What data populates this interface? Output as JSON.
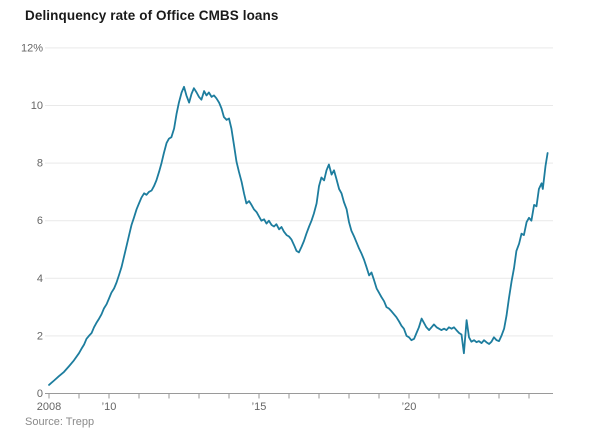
{
  "header": {
    "title": "Delinquency rate of Office CMBS loans"
  },
  "source": "Source: Trepp",
  "chart_data": {
    "type": "line",
    "title": "Delinquency rate of Office CMBS loans",
    "xlabel": "",
    "ylabel": "",
    "unit": "%",
    "grid": "horizontal",
    "legend": "none",
    "x_range": [
      2008,
      2024.9
    ],
    "y_range": [
      0,
      12
    ],
    "y_ticks": [
      {
        "value": 12,
        "label": "12%"
      },
      {
        "value": 10,
        "label": "10"
      },
      {
        "value": 8,
        "label": "8"
      },
      {
        "value": 6,
        "label": "6"
      },
      {
        "value": 4,
        "label": "4"
      },
      {
        "value": 2,
        "label": "2"
      },
      {
        "value": 0,
        "label": "0"
      }
    ],
    "x_ticks": [
      {
        "year": 2008,
        "label": "2008"
      },
      {
        "year": 2010,
        "label": "’10"
      },
      {
        "year": 2015,
        "label": "’15"
      },
      {
        "year": 2020,
        "label": "’20"
      }
    ],
    "x_minor_tick_start": 2008,
    "x_minor_tick_end": 2024,
    "line_color": "#1d7d9e",
    "series": [
      {
        "name": "Office CMBS delinquency rate",
        "points": [
          [
            2008.0,
            0.3
          ],
          [
            2008.17,
            0.45
          ],
          [
            2008.33,
            0.6
          ],
          [
            2008.5,
            0.75
          ],
          [
            2008.67,
            0.95
          ],
          [
            2008.83,
            1.15
          ],
          [
            2009.0,
            1.4
          ],
          [
            2009.08,
            1.55
          ],
          [
            2009.17,
            1.7
          ],
          [
            2009.25,
            1.9
          ],
          [
            2009.33,
            2.0
          ],
          [
            2009.42,
            2.1
          ],
          [
            2009.5,
            2.3
          ],
          [
            2009.58,
            2.45
          ],
          [
            2009.67,
            2.6
          ],
          [
            2009.75,
            2.75
          ],
          [
            2009.83,
            2.95
          ],
          [
            2009.92,
            3.1
          ],
          [
            2010.0,
            3.3
          ],
          [
            2010.08,
            3.5
          ],
          [
            2010.17,
            3.65
          ],
          [
            2010.25,
            3.85
          ],
          [
            2010.33,
            4.1
          ],
          [
            2010.42,
            4.4
          ],
          [
            2010.5,
            4.75
          ],
          [
            2010.58,
            5.1
          ],
          [
            2010.67,
            5.5
          ],
          [
            2010.75,
            5.85
          ],
          [
            2010.83,
            6.1
          ],
          [
            2010.92,
            6.4
          ],
          [
            2011.0,
            6.6
          ],
          [
            2011.08,
            6.8
          ],
          [
            2011.17,
            6.95
          ],
          [
            2011.25,
            6.9
          ],
          [
            2011.33,
            7.0
          ],
          [
            2011.42,
            7.05
          ],
          [
            2011.5,
            7.2
          ],
          [
            2011.58,
            7.4
          ],
          [
            2011.67,
            7.7
          ],
          [
            2011.75,
            8.0
          ],
          [
            2011.83,
            8.35
          ],
          [
            2011.92,
            8.7
          ],
          [
            2012.0,
            8.85
          ],
          [
            2012.08,
            8.9
          ],
          [
            2012.17,
            9.2
          ],
          [
            2012.25,
            9.7
          ],
          [
            2012.33,
            10.1
          ],
          [
            2012.42,
            10.45
          ],
          [
            2012.5,
            10.65
          ],
          [
            2012.58,
            10.35
          ],
          [
            2012.67,
            10.1
          ],
          [
            2012.75,
            10.4
          ],
          [
            2012.83,
            10.6
          ],
          [
            2012.92,
            10.45
          ],
          [
            2013.0,
            10.3
          ],
          [
            2013.08,
            10.2
          ],
          [
            2013.17,
            10.5
          ],
          [
            2013.25,
            10.35
          ],
          [
            2013.33,
            10.45
          ],
          [
            2013.42,
            10.3
          ],
          [
            2013.5,
            10.35
          ],
          [
            2013.58,
            10.25
          ],
          [
            2013.67,
            10.1
          ],
          [
            2013.75,
            9.9
          ],
          [
            2013.83,
            9.6
          ],
          [
            2013.92,
            9.5
          ],
          [
            2014.0,
            9.55
          ],
          [
            2014.08,
            9.2
          ],
          [
            2014.17,
            8.6
          ],
          [
            2014.25,
            8.05
          ],
          [
            2014.33,
            7.7
          ],
          [
            2014.42,
            7.35
          ],
          [
            2014.5,
            6.95
          ],
          [
            2014.58,
            6.6
          ],
          [
            2014.67,
            6.68
          ],
          [
            2014.75,
            6.55
          ],
          [
            2014.83,
            6.4
          ],
          [
            2014.92,
            6.3
          ],
          [
            2015.0,
            6.15
          ],
          [
            2015.08,
            6.0
          ],
          [
            2015.17,
            6.05
          ],
          [
            2015.25,
            5.9
          ],
          [
            2015.33,
            6.0
          ],
          [
            2015.42,
            5.85
          ],
          [
            2015.5,
            5.8
          ],
          [
            2015.58,
            5.88
          ],
          [
            2015.67,
            5.7
          ],
          [
            2015.75,
            5.78
          ],
          [
            2015.83,
            5.62
          ],
          [
            2015.92,
            5.5
          ],
          [
            2016.0,
            5.45
          ],
          [
            2016.08,
            5.35
          ],
          [
            2016.17,
            5.15
          ],
          [
            2016.25,
            4.95
          ],
          [
            2016.33,
            4.9
          ],
          [
            2016.42,
            5.1
          ],
          [
            2016.5,
            5.3
          ],
          [
            2016.58,
            5.55
          ],
          [
            2016.67,
            5.8
          ],
          [
            2016.75,
            6.0
          ],
          [
            2016.83,
            6.25
          ],
          [
            2016.92,
            6.6
          ],
          [
            2017.0,
            7.2
          ],
          [
            2017.08,
            7.5
          ],
          [
            2017.17,
            7.4
          ],
          [
            2017.25,
            7.75
          ],
          [
            2017.33,
            7.95
          ],
          [
            2017.42,
            7.6
          ],
          [
            2017.5,
            7.75
          ],
          [
            2017.58,
            7.45
          ],
          [
            2017.67,
            7.1
          ],
          [
            2017.75,
            6.95
          ],
          [
            2017.83,
            6.65
          ],
          [
            2017.92,
            6.4
          ],
          [
            2018.0,
            5.95
          ],
          [
            2018.08,
            5.65
          ],
          [
            2018.17,
            5.45
          ],
          [
            2018.25,
            5.25
          ],
          [
            2018.33,
            5.05
          ],
          [
            2018.42,
            4.85
          ],
          [
            2018.5,
            4.65
          ],
          [
            2018.58,
            4.4
          ],
          [
            2018.67,
            4.1
          ],
          [
            2018.75,
            4.2
          ],
          [
            2018.83,
            3.95
          ],
          [
            2018.92,
            3.65
          ],
          [
            2019.0,
            3.5
          ],
          [
            2019.08,
            3.35
          ],
          [
            2019.17,
            3.2
          ],
          [
            2019.25,
            3.0
          ],
          [
            2019.33,
            2.95
          ],
          [
            2019.42,
            2.85
          ],
          [
            2019.5,
            2.75
          ],
          [
            2019.58,
            2.65
          ],
          [
            2019.67,
            2.5
          ],
          [
            2019.75,
            2.35
          ],
          [
            2019.83,
            2.25
          ],
          [
            2019.92,
            2.0
          ],
          [
            2020.0,
            1.95
          ],
          [
            2020.08,
            1.85
          ],
          [
            2020.17,
            1.9
          ],
          [
            2020.25,
            2.1
          ],
          [
            2020.33,
            2.3
          ],
          [
            2020.42,
            2.6
          ],
          [
            2020.5,
            2.45
          ],
          [
            2020.58,
            2.3
          ],
          [
            2020.67,
            2.2
          ],
          [
            2020.75,
            2.3
          ],
          [
            2020.83,
            2.4
          ],
          [
            2020.92,
            2.3
          ],
          [
            2021.0,
            2.25
          ],
          [
            2021.08,
            2.2
          ],
          [
            2021.17,
            2.25
          ],
          [
            2021.25,
            2.2
          ],
          [
            2021.33,
            2.3
          ],
          [
            2021.42,
            2.25
          ],
          [
            2021.5,
            2.3
          ],
          [
            2021.58,
            2.2
          ],
          [
            2021.67,
            2.1
          ],
          [
            2021.75,
            2.05
          ],
          [
            2021.83,
            1.4
          ],
          [
            2021.92,
            2.55
          ],
          [
            2022.0,
            1.95
          ],
          [
            2022.08,
            1.8
          ],
          [
            2022.17,
            1.85
          ],
          [
            2022.25,
            1.78
          ],
          [
            2022.33,
            1.82
          ],
          [
            2022.42,
            1.75
          ],
          [
            2022.5,
            1.85
          ],
          [
            2022.58,
            1.78
          ],
          [
            2022.67,
            1.72
          ],
          [
            2022.75,
            1.8
          ],
          [
            2022.83,
            1.95
          ],
          [
            2022.92,
            1.85
          ],
          [
            2023.0,
            1.82
          ],
          [
            2023.08,
            2.0
          ],
          [
            2023.17,
            2.25
          ],
          [
            2023.25,
            2.7
          ],
          [
            2023.33,
            3.3
          ],
          [
            2023.42,
            3.9
          ],
          [
            2023.5,
            4.35
          ],
          [
            2023.58,
            4.95
          ],
          [
            2023.67,
            5.2
          ],
          [
            2023.75,
            5.55
          ],
          [
            2023.83,
            5.5
          ],
          [
            2023.92,
            5.95
          ],
          [
            2024.0,
            6.1
          ],
          [
            2024.08,
            6.0
          ],
          [
            2024.17,
            6.55
          ],
          [
            2024.25,
            6.5
          ],
          [
            2024.33,
            7.1
          ],
          [
            2024.42,
            7.3
          ],
          [
            2024.46,
            7.1
          ],
          [
            2024.55,
            7.9
          ],
          [
            2024.62,
            8.35
          ]
        ]
      }
    ]
  }
}
